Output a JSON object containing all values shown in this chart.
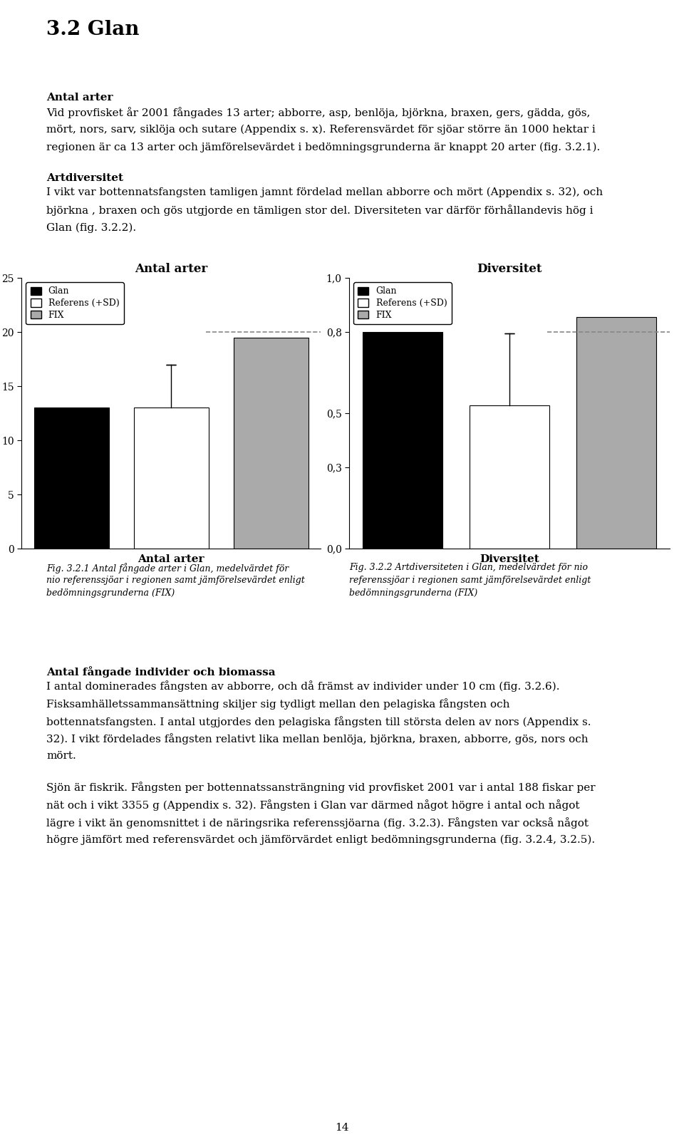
{
  "page_title": "3.2 Glan",
  "section1_heading": "Antal arter",
  "section1_text_line1": "Vid provfisket år 2001 fångades 13 arter; abborre, asp, benlöja, björkna, braxen, gers, gädda, gös,",
  "section1_text_line2": "mört, nors, sarv, siklöja och sutare (Appendix s. x). Referensvärdet för sjöar större än 1000 hektar i",
  "section1_text_line3": "regionen är ca 13 arter och jämförelsevärdet i bedömningsgrunderna är knappt 20 arter (fig. 3.2.1).",
  "section2_heading": "Artdiversitet",
  "section2_text_line1": "I vikt var bottennatsfangsten tamligen jamnt fördelad mellan abborre och mört (Appendix s. 32), och",
  "section2_text_line2": "björkna , braxen och gös utgjorde en tämligen stor del. Diversiteten var därför förhållandevis hög i",
  "section2_text_line3": "Glan (fig. 3.2.2).",
  "chart1": {
    "title": "Antal arter",
    "xlabel": "Antal arter",
    "ylim": [
      0,
      25
    ],
    "yticks": [
      0,
      5,
      10,
      15,
      20,
      25
    ],
    "ytick_labels": [
      "0",
      "5",
      "10",
      "15",
      "20",
      "25"
    ],
    "bar_labels": [
      "Glan",
      "Referens (+SD)",
      "FIX"
    ],
    "bar_values": [
      13.0,
      13.0,
      19.5
    ],
    "bar_colors": [
      "#000000",
      "#ffffff",
      "#aaaaaa"
    ],
    "bar_edgecolors": [
      "#000000",
      "#000000",
      "#000000"
    ],
    "error_bar_value": 4.0,
    "error_bar_index": 1,
    "fix_dash_value": 20.0
  },
  "chart2": {
    "title": "Diversitet",
    "xlabel": "Diversitet",
    "ylim": [
      0.0,
      1.0
    ],
    "yticks": [
      0.0,
      0.3,
      0.5,
      0.8,
      1.0
    ],
    "ytick_labels": [
      "0,0",
      "0,3",
      "0,5",
      "0,8",
      "1,0"
    ],
    "bar_labels": [
      "Glan",
      "Referens (+SD)",
      "FIX"
    ],
    "bar_values": [
      0.8,
      0.53,
      0.855
    ],
    "bar_colors": [
      "#000000",
      "#ffffff",
      "#aaaaaa"
    ],
    "bar_edgecolors": [
      "#000000",
      "#000000",
      "#000000"
    ],
    "error_bar_value": 0.265,
    "error_bar_index": 1,
    "fix_dash_value": 0.8
  },
  "fig_caption1_lines": [
    "Fig. 3.2.1 Antal fångade arter i Glan, medelvärdet för",
    "nio referenssjöar i regionen samt jämförelsevärdet enligt",
    "bedömningsgrunderna (FIX)"
  ],
  "fig_caption2_lines": [
    "Fig. 3.2.2 Artdiversiteten i Glan, medelvärdet för nio",
    "referenssjöar i regionen samt jämförelsevärdet enligt",
    "bedömningsgrunderna (FIX)"
  ],
  "section3_heading": "Antal fångade individer och biomassa",
  "section3_text_line1": "I antal dominerades fångsten av abborre, och då främst av individer under 10 cm (fig. 3.2.6).",
  "section3_text_line2": "Fisksamhälletssammansättning skiljer sig tydligt mellan den pelagiska fångsten och",
  "section3_text_line3": "bottennatsfangsten. I antal utgjordes den pelagiska fångsten till största delen av nors (Appendix s.",
  "section3_text_line4": "32). I vikt fördelades fångsten relativt lika mellan benlöja, björkna, braxen, abborre, gös, nors och",
  "section3_text_line5": "mört.",
  "section4_text_line1": "Sjön är fiskrik. Fångsten per bottennatssansträngning vid provfisket 2001 var i antal 188 fiskar per",
  "section4_text_line2": "nät och i vikt 3355 g (Appendix s. 32). Fångsten i Glan var därmed något högre i antal och något",
  "section4_text_line3": "lägre i vikt än genomsnittet i de näringsrika referenssjöarna (fig. 3.2.3). Fångsten var också något",
  "section4_text_line4": "högre jämfört med referensvärdet och jämförvärdet enligt bedömningsgrunderna (fig. 3.2.4, 3.2.5).",
  "page_number": "14",
  "background_color": "#ffffff",
  "text_color": "#000000"
}
